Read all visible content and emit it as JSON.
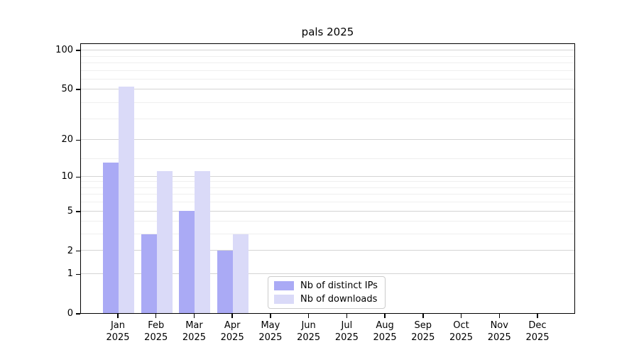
{
  "title": "pals 2025",
  "chart_data": {
    "type": "bar",
    "title": "pals 2025",
    "year": "2025",
    "months": [
      "Jan",
      "Feb",
      "Mar",
      "Apr",
      "May",
      "Jun",
      "Jul",
      "Aug",
      "Sep",
      "Oct",
      "Nov",
      "Dec"
    ],
    "series": [
      {
        "name": "Nb of distinct IPs",
        "color": "#aaaaf5",
        "values": [
          13,
          3,
          5,
          2,
          0,
          0,
          0,
          0,
          0,
          0,
          0,
          0
        ]
      },
      {
        "name": "Nb of downloads",
        "color": "#dadaf8",
        "values": [
          52,
          11,
          11,
          3,
          0,
          0,
          0,
          0,
          0,
          0,
          0,
          0
        ]
      }
    ],
    "y_ticks": [
      0,
      1,
      2,
      5,
      10,
      20,
      50,
      100
    ],
    "y_scale": "log10(1+x)",
    "y_top": 113.5,
    "minor_gridline_values": [
      3,
      4,
      6,
      7,
      8,
      9,
      14,
      29,
      39,
      59,
      69,
      79,
      89
    ],
    "grid": true,
    "legend_position": "lower center inside"
  },
  "colors": {
    "major_grid": "#d4d4d4",
    "minor_grid": "#efefef",
    "axis": "#000000",
    "legend_border": "#cccccc",
    "background": "#ffffff"
  }
}
